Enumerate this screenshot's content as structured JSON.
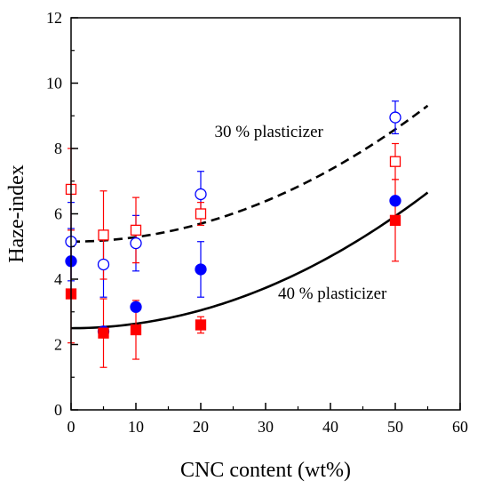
{
  "chart_data": {
    "type": "scatter",
    "title": "",
    "xlabel": "CNC content (wt%)",
    "ylabel": "Haze-index",
    "xlim": [
      0,
      60
    ],
    "ylim": [
      0,
      12
    ],
    "xticks": [
      0,
      10,
      20,
      30,
      40,
      50,
      60
    ],
    "yticks": [
      0,
      2,
      4,
      6,
      8,
      10,
      12
    ],
    "grid": false,
    "series": [
      {
        "marker": "open-circle",
        "color": "#0000ff",
        "x": [
          0,
          5,
          10,
          20,
          50
        ],
        "y": [
          5.15,
          4.45,
          5.1,
          6.6,
          8.95
        ],
        "err": [
          1.2,
          1.0,
          0.85,
          0.7,
          0.5
        ]
      },
      {
        "marker": "open-square",
        "color": "#ff0000",
        "x": [
          0,
          5,
          10,
          20,
          50
        ],
        "y": [
          6.75,
          5.35,
          5.5,
          6.0,
          7.6
        ],
        "err": [
          1.25,
          1.35,
          1.0,
          0.35,
          0.55
        ]
      },
      {
        "marker": "filled-circle",
        "color": "#0000ff",
        "x": [
          0,
          5,
          10,
          20,
          50
        ],
        "y": [
          4.55,
          2.4,
          3.15,
          4.3,
          6.4
        ],
        "err": [
          1.0,
          0.0,
          0.0,
          0.85,
          0.0
        ]
      },
      {
        "marker": "filled-square",
        "color": "#ff0000",
        "x": [
          0,
          5,
          10,
          20,
          50
        ],
        "y": [
          3.55,
          2.35,
          2.45,
          2.6,
          5.8
        ],
        "err": [
          1.5,
          1.05,
          0.9,
          0.25,
          1.25
        ]
      }
    ],
    "fits": [
      {
        "style": "dashed",
        "color": "#000000",
        "a": 5.15,
        "b": 0.001375,
        "x_range": [
          0,
          55
        ]
      },
      {
        "style": "solid",
        "color": "#000000",
        "a": 2.5,
        "b": 0.001372,
        "x_range": [
          0,
          55
        ]
      }
    ],
    "annotations": [
      {
        "text": "30 % plasticizer",
        "x": 30.5,
        "y": 8.35
      },
      {
        "text": "40 % plasticizer",
        "x": 40.3,
        "y": 3.4
      }
    ]
  }
}
